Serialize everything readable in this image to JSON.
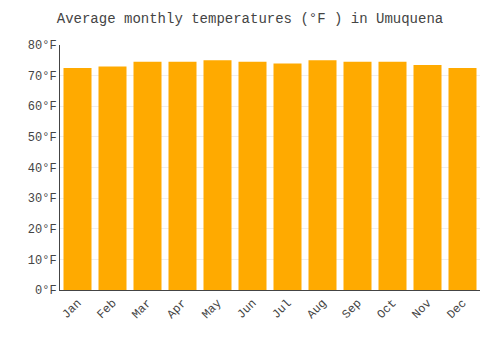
{
  "chart_data": {
    "type": "bar",
    "title": "Average monthly temperatures (°F ) in Umuquena",
    "categories": [
      "Jan",
      "Feb",
      "Mar",
      "Apr",
      "May",
      "Jun",
      "Jul",
      "Aug",
      "Sep",
      "Oct",
      "Nov",
      "Dec"
    ],
    "values": [
      72.5,
      73.0,
      74.5,
      74.5,
      75.0,
      74.5,
      74.0,
      75.0,
      74.5,
      74.5,
      73.5,
      72.5
    ],
    "color": "#FFAA00",
    "ylim": [
      0,
      80
    ],
    "yticks": [
      {
        "value": 0,
        "label": "0°F"
      },
      {
        "value": 10,
        "label": "10°F"
      },
      {
        "value": 20,
        "label": "20°F"
      },
      {
        "value": 30,
        "label": "30°F"
      },
      {
        "value": 40,
        "label": "40°F"
      },
      {
        "value": 50,
        "label": "50°F"
      },
      {
        "value": 60,
        "label": "60°F"
      },
      {
        "value": 70,
        "label": "70°F"
      },
      {
        "value": 80,
        "label": "80°F"
      }
    ],
    "grid": true
  }
}
